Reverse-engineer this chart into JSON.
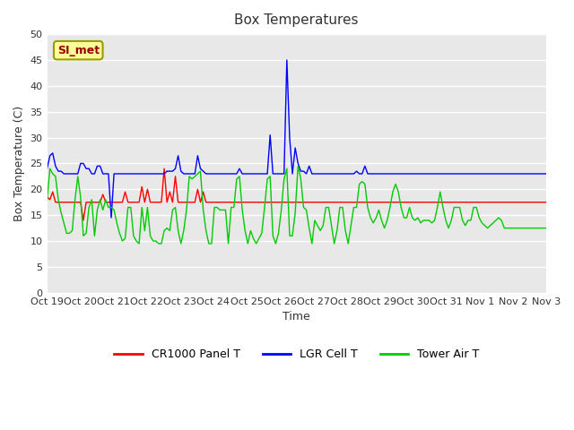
{
  "title": "Box Temperatures",
  "ylabel": "Box Temperature (C)",
  "xlabel": "Time",
  "ylim": [
    0,
    50
  ],
  "yticks": [
    0,
    5,
    10,
    15,
    20,
    25,
    30,
    35,
    40,
    45,
    50
  ],
  "xtick_labels": [
    "Oct 19",
    "Oct 20",
    "Oct 21",
    "Oct 22",
    "Oct 23",
    "Oct 24",
    "Oct 25",
    "Oct 26",
    "Oct 27",
    "Oct 28",
    "Oct 29",
    "Oct 30",
    "Oct 31",
    "Nov 1",
    "Nov 2",
    "Nov 3"
  ],
  "bg_color": "#e8e8e8",
  "fig_color": "#ffffff",
  "grid_color": "#ffffff",
  "si_met_label": "SI_met",
  "si_met_bg": "#ffff99",
  "si_met_text_color": "#990000",
  "si_met_border_color": "#999900",
  "legend_labels": [
    "CR1000 Panel T",
    "LGR Cell T",
    "Tower Air T"
  ],
  "line_colors": [
    "#ff0000",
    "#0000ff",
    "#00cc00"
  ],
  "line_width": 1.0,
  "red_data": [
    18.5,
    18.0,
    19.5,
    17.5,
    17.5,
    17.5,
    17.5,
    17.5,
    17.5,
    17.5,
    17.5,
    17.5,
    17.5,
    14.0,
    17.5,
    17.5,
    17.5,
    17.5,
    17.5,
    17.5,
    19.0,
    17.5,
    17.5,
    17.5,
    17.5,
    17.5,
    17.5,
    17.5,
    19.5,
    17.5,
    17.5,
    17.5,
    17.5,
    17.5,
    20.5,
    17.5,
    20.0,
    17.5,
    17.5,
    17.5,
    17.5,
    17.5,
    24.0,
    17.5,
    19.5,
    17.5,
    22.5,
    17.5,
    17.5,
    17.5,
    17.5,
    17.5,
    17.5,
    17.5,
    20.0,
    17.5,
    19.5,
    17.5,
    17.5,
    17.5,
    17.5,
    17.5,
    17.5,
    17.5,
    17.5,
    17.5,
    17.5,
    17.5,
    17.5,
    17.5,
    17.5,
    17.5,
    17.5,
    17.5,
    17.5,
    17.5,
    17.5,
    17.5,
    17.5,
    17.5,
    17.5,
    17.5,
    17.5,
    17.5,
    17.5,
    17.5,
    17.5,
    17.5,
    17.5,
    17.5,
    17.5,
    17.5,
    17.5,
    17.5,
    17.5,
    17.5,
    17.5,
    17.5,
    17.5,
    17.5,
    17.5,
    17.5,
    17.5,
    17.5,
    17.5,
    17.5,
    17.5,
    17.5,
    17.5,
    17.5,
    17.5,
    17.5,
    17.5,
    17.5,
    17.5,
    17.5,
    17.5,
    17.5,
    17.5,
    17.5,
    17.5,
    17.5,
    17.5,
    17.5,
    17.5,
    17.5,
    17.5,
    17.5,
    17.5,
    17.5,
    17.5,
    17.5,
    17.5,
    17.5,
    17.5,
    17.5,
    17.5,
    17.5,
    17.5,
    17.5,
    17.5,
    17.5,
    17.5,
    17.5,
    17.5,
    17.5,
    17.5,
    17.5,
    17.5,
    17.5,
    17.5,
    17.5,
    17.5,
    17.5,
    17.5,
    17.5,
    17.5,
    17.5,
    17.5,
    17.5,
    17.5,
    17.5,
    17.5,
    17.5,
    17.5,
    17.5,
    17.5,
    17.5,
    17.5,
    17.5,
    17.5,
    17.5,
    17.5,
    17.5,
    17.5,
    17.5,
    17.5,
    17.5,
    17.5,
    17.5,
    17.5,
    17.5,
    17.5,
    17.5,
    17.5,
    17.5,
    17.5
  ],
  "blue_data": [
    24.0,
    26.5,
    27.0,
    24.5,
    23.5,
    23.5,
    23.0,
    23.0,
    23.0,
    23.0,
    23.0,
    23.0,
    25.0,
    25.0,
    24.0,
    24.0,
    23.0,
    23.0,
    24.5,
    24.5,
    23.0,
    23.0,
    23.0,
    14.5,
    23.0,
    23.0,
    23.0,
    23.0,
    23.0,
    23.0,
    23.0,
    23.0,
    23.0,
    23.0,
    23.0,
    23.0,
    23.0,
    23.0,
    23.0,
    23.0,
    23.0,
    23.0,
    23.0,
    23.5,
    23.5,
    23.5,
    24.0,
    26.5,
    23.5,
    23.0,
    23.0,
    23.0,
    23.0,
    23.0,
    26.5,
    24.0,
    23.5,
    23.0,
    23.0,
    23.0,
    23.0,
    23.0,
    23.0,
    23.0,
    23.0,
    23.0,
    23.0,
    23.0,
    23.0,
    24.0,
    23.0,
    23.0,
    23.0,
    23.0,
    23.0,
    23.0,
    23.0,
    23.0,
    23.0,
    23.0,
    30.5,
    23.0,
    23.0,
    23.0,
    23.0,
    23.0,
    45.0,
    30.0,
    23.0,
    28.0,
    25.0,
    23.5,
    23.5,
    23.0,
    24.5,
    23.0,
    23.0,
    23.0,
    23.0,
    23.0,
    23.0,
    23.0,
    23.0,
    23.0,
    23.0,
    23.0,
    23.0,
    23.0,
    23.0,
    23.0,
    23.0,
    23.5,
    23.0,
    23.0,
    24.5,
    23.0,
    23.0,
    23.0,
    23.0,
    23.0,
    23.0,
    23.0,
    23.0,
    23.0,
    23.0,
    23.0,
    23.0,
    23.0,
    23.0,
    23.0,
    23.0,
    23.0,
    23.0,
    23.0,
    23.0,
    23.0,
    23.0,
    23.0,
    23.0,
    23.0,
    23.0,
    23.0,
    23.0,
    23.0,
    23.0,
    23.0,
    23.0,
    23.0,
    23.0,
    23.0,
    23.0,
    23.0,
    23.0,
    23.0,
    23.0,
    23.0,
    23.0,
    23.0,
    23.0,
    23.0,
    23.0,
    23.0,
    23.0,
    23.0,
    23.0,
    23.0,
    23.0,
    23.0,
    23.0,
    23.0,
    23.0,
    23.0,
    23.0,
    23.0,
    23.0,
    23.0,
    23.0,
    23.0,
    23.0,
    23.0,
    23.0,
    23.0,
    23.0,
    23.0,
    23.0,
    23.0
  ],
  "green_data": [
    18.0,
    24.0,
    23.0,
    22.5,
    18.0,
    15.5,
    13.5,
    11.5,
    11.5,
    12.0,
    18.0,
    22.5,
    18.5,
    11.0,
    11.5,
    16.5,
    18.0,
    11.0,
    16.0,
    18.0,
    16.0,
    18.0,
    16.5,
    16.5,
    16.0,
    13.5,
    11.5,
    10.0,
    10.5,
    16.5,
    16.5,
    11.0,
    10.0,
    9.5,
    16.5,
    12.0,
    16.5,
    11.0,
    10.0,
    10.0,
    9.5,
    9.5,
    12.0,
    12.5,
    12.0,
    16.0,
    16.5,
    12.0,
    9.5,
    12.0,
    16.0,
    22.5,
    22.0,
    22.5,
    23.0,
    23.5,
    16.0,
    12.0,
    9.5,
    9.5,
    16.5,
    16.5,
    16.0,
    16.0,
    16.0,
    9.5,
    16.5,
    16.5,
    22.0,
    22.5,
    16.0,
    12.0,
    9.5,
    12.0,
    10.5,
    9.5,
    10.5,
    11.5,
    16.5,
    22.0,
    22.5,
    11.0,
    9.5,
    11.5,
    16.0,
    22.0,
    24.0,
    11.0,
    11.0,
    15.5,
    24.5,
    22.0,
    16.5,
    16.0,
    12.5,
    9.5,
    14.0,
    13.0,
    12.0,
    13.0,
    16.5,
    16.5,
    13.0,
    9.5,
    12.0,
    16.5,
    16.5,
    12.0,
    9.5,
    13.0,
    16.5,
    16.5,
    21.0,
    21.5,
    21.0,
    16.5,
    14.5,
    13.5,
    14.5,
    16.0,
    14.0,
    12.5,
    14.0,
    16.5,
    19.5,
    21.0,
    19.5,
    16.5,
    14.5,
    14.5,
    16.5,
    14.5,
    14.0,
    14.5,
    13.5,
    14.0,
    14.0,
    14.0,
    13.5,
    14.0,
    16.5,
    19.5,
    16.5,
    14.0,
    12.5,
    14.0,
    16.5,
    16.5,
    16.5,
    14.0,
    13.0,
    14.0,
    14.0,
    16.5,
    16.5,
    14.5,
    13.5,
    13.0,
    12.5,
    13.0,
    13.5,
    14.0,
    14.5,
    14.0,
    12.5,
    12.5,
    12.5,
    12.5,
    12.5,
    12.5,
    12.5,
    12.5,
    12.5,
    12.5,
    12.5,
    12.5,
    12.5,
    12.5,
    12.5,
    12.5
  ]
}
